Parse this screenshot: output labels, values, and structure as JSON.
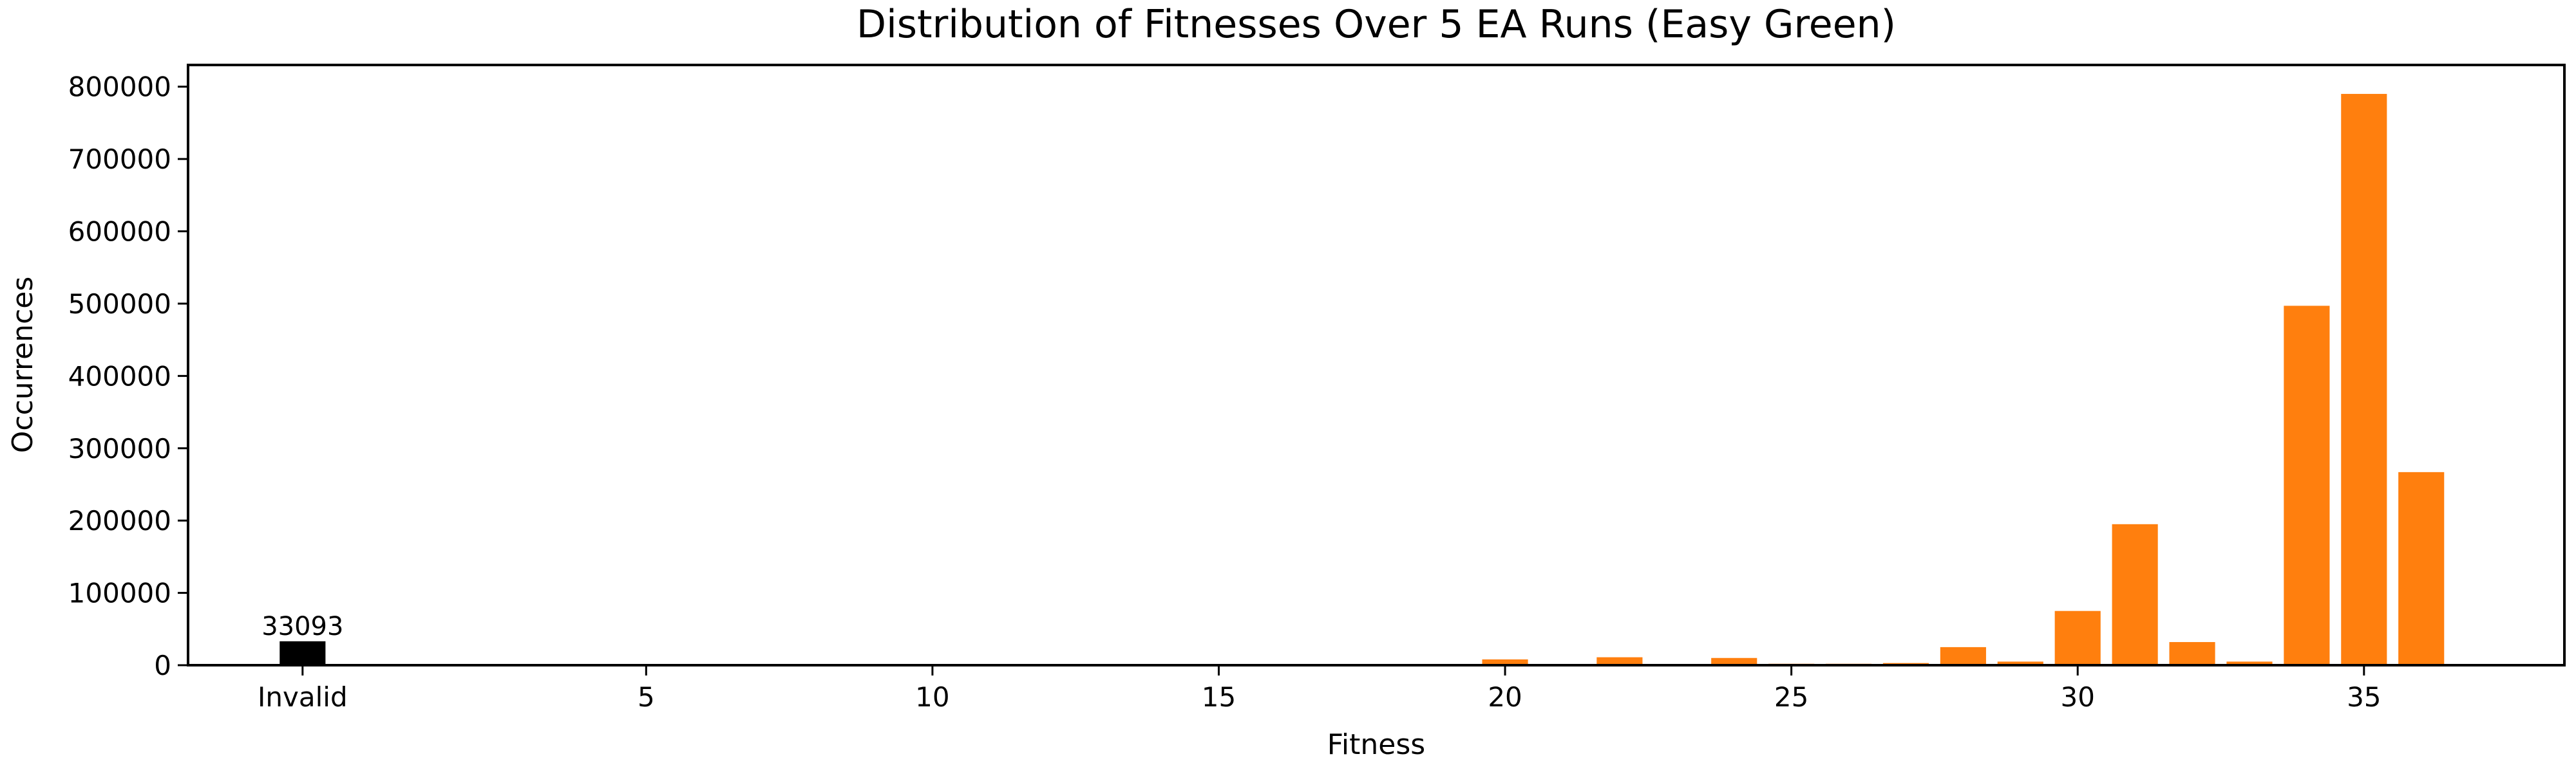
{
  "chart_data": {
    "type": "bar",
    "title": "Distribution of Fitnesses Over 5 EA Runs (Easy Green)",
    "xlabel": "Fitness",
    "ylabel": "Occurrences",
    "xlim": [
      -2,
      39.5
    ],
    "ylim": [
      0,
      830000
    ],
    "grid": false,
    "x_ticks": [
      {
        "value": 0,
        "label": "Invalid"
      },
      {
        "value": 6,
        "label": "5"
      },
      {
        "value": 11,
        "label": "10"
      },
      {
        "value": 16,
        "label": "15"
      },
      {
        "value": 21,
        "label": "20"
      },
      {
        "value": 26,
        "label": "25"
      },
      {
        "value": 31,
        "label": "30"
      },
      {
        "value": 36,
        "label": "35"
      }
    ],
    "y_ticks": [
      0,
      100000,
      200000,
      300000,
      400000,
      500000,
      600000,
      700000,
      800000
    ],
    "series": [
      {
        "color": "#000000",
        "x": [
          0
        ],
        "values": [
          33093
        ],
        "data_labels": [
          "33093"
        ]
      },
      {
        "color": "#ff7f0e",
        "x": [
          8,
          18,
          20,
          21,
          23,
          25,
          26,
          27,
          28,
          29,
          30,
          31,
          32,
          33,
          34,
          35,
          36,
          37
        ],
        "values": [
          500,
          500,
          1000,
          8000,
          11000,
          10000,
          2000,
          2000,
          3000,
          25000,
          5000,
          75000,
          195000,
          32000,
          5000,
          497000,
          790000,
          267000
        ]
      }
    ]
  }
}
